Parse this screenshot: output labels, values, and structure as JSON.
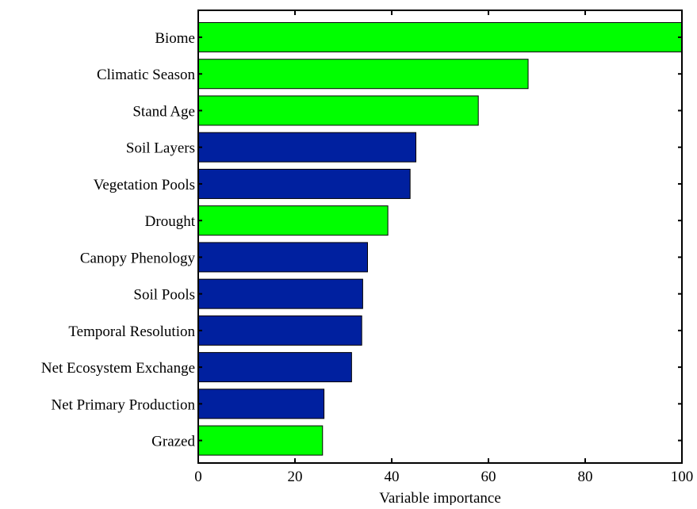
{
  "chart_data": {
    "type": "bar",
    "orientation": "horizontal",
    "categories": [
      "Biome",
      "Climatic Season",
      "Stand Age",
      "Soil Layers",
      "Vegetation Pools",
      "Drought",
      "Canopy Phenology",
      "Soil Pools",
      "Temporal Resolution",
      "Net Ecosystem Exchange",
      "Net Primary Production",
      "Grazed"
    ],
    "values": [
      100,
      68.2,
      57.9,
      45.0,
      43.8,
      39.2,
      35.0,
      34.0,
      33.8,
      31.7,
      26.0,
      25.7
    ],
    "bar_colors": [
      "#00ff00",
      "#00ff00",
      "#00ff00",
      "#00209f",
      "#00209f",
      "#00ff00",
      "#00209f",
      "#00209f",
      "#00209f",
      "#00209f",
      "#00209f",
      "#00ff00"
    ],
    "title": "",
    "xlabel": "Variable importance",
    "ylabel": "",
    "xlim": [
      0,
      100
    ],
    "xticks": [
      0,
      20,
      40,
      60,
      80,
      100
    ],
    "grid": false,
    "legend": "none"
  }
}
